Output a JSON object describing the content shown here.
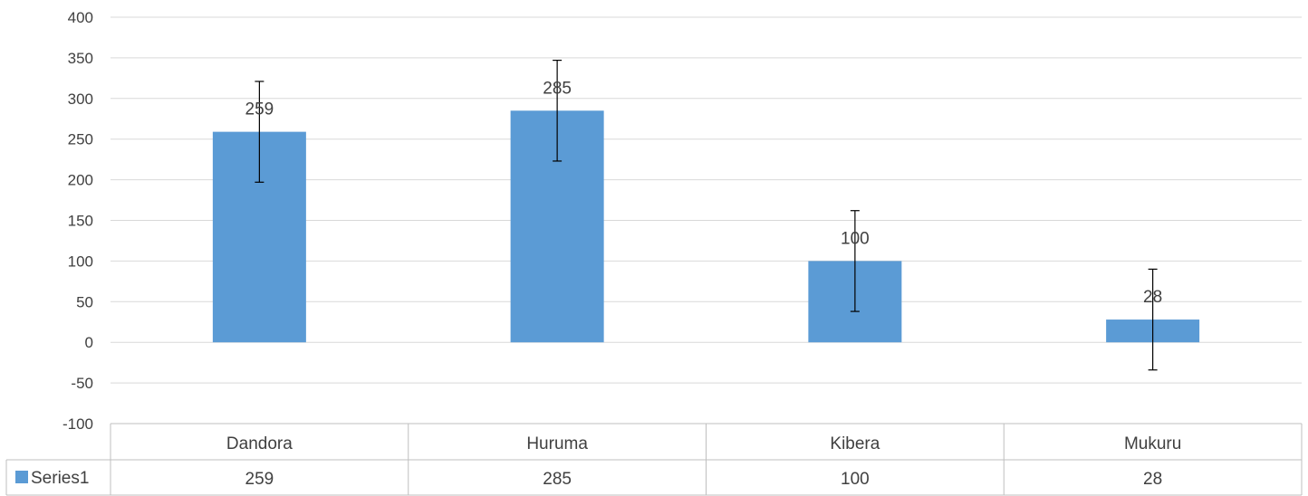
{
  "chart_data": {
    "type": "bar",
    "categories": [
      "Dandora",
      "Huruma",
      "Kibera",
      "Mukuru"
    ],
    "series": [
      {
        "name": "Series1",
        "values": [
          259,
          285,
          100,
          28
        ],
        "color": "#5b9bd5"
      }
    ],
    "error_bar": 62,
    "ylim": [
      -100,
      400
    ],
    "yticks": [
      400,
      350,
      300,
      250,
      200,
      150,
      100,
      50,
      0,
      -50,
      -100
    ],
    "data_labels": [
      "259",
      "285",
      "100",
      "28"
    ],
    "data_table": true,
    "grid": true,
    "title": "",
    "xlabel": "",
    "ylabel": ""
  }
}
